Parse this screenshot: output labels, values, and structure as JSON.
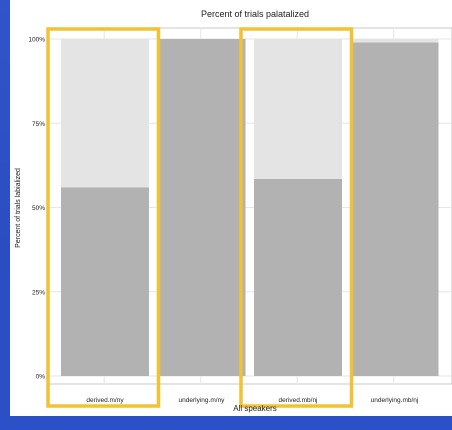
{
  "chart_data": {
    "type": "bar",
    "title": "Percent of trials palatalized",
    "xlabel": "All speakers",
    "ylabel": "Percent of trials labialized",
    "ylim": [
      0,
      1
    ],
    "y_ticks": [
      "0%",
      "25%",
      "50%",
      "75%",
      "100%"
    ],
    "categories": [
      "derived.m/ny",
      "underlying.m/ny",
      "derived.mb/nj",
      "underlying.mb/nj"
    ],
    "stacked": true,
    "series": [
      {
        "values": [
          0.56,
          1.0,
          0.585,
          0.99
        ]
      },
      {
        "values": [
          0.44,
          0.0,
          0.415,
          0.01
        ]
      }
    ],
    "colors": {
      "lower": "#b2b2b2",
      "upper": "#e4e4e4",
      "grid": "#e6e6e6",
      "highlight": "#f1c232"
    },
    "highlighted_categories": [
      "derived.m/ny",
      "derived.mb/nj"
    ],
    "grid": true
  }
}
